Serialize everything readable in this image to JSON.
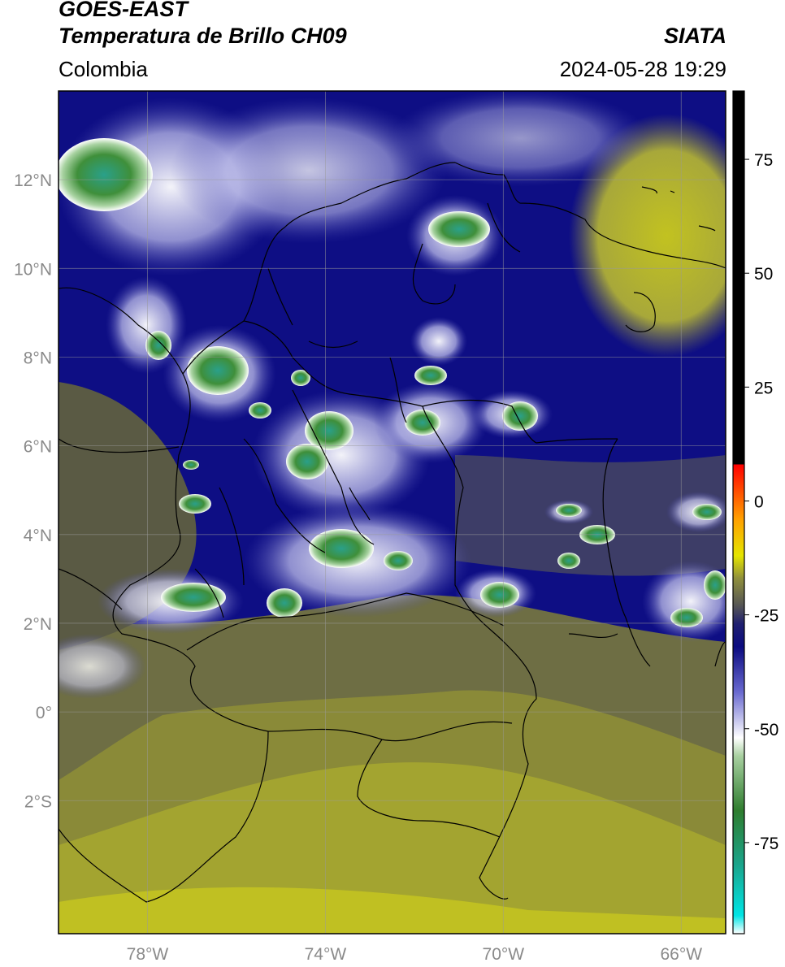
{
  "header": {
    "satellite": "GOES-EAST",
    "product": "Temperatura de Brillo CH09",
    "region": "Colombia",
    "organization": "SIATA",
    "datetime": "2024-05-28 19:29"
  },
  "map": {
    "lon_range": [
      -80,
      -65
    ],
    "lat_range": [
      -5,
      14
    ],
    "lon_ticks": [
      {
        "value": -78,
        "label": "78°W"
      },
      {
        "value": -74,
        "label": "74°W"
      },
      {
        "value": -70,
        "label": "70°W"
      },
      {
        "value": -66,
        "label": "66°W"
      }
    ],
    "lat_ticks": [
      {
        "value": 12,
        "label": "12°N"
      },
      {
        "value": 10,
        "label": "10°N"
      },
      {
        "value": 8,
        "label": "8°N"
      },
      {
        "value": 6,
        "label": "6°N"
      },
      {
        "value": 4,
        "label": "4°N"
      },
      {
        "value": 2,
        "label": "2°N"
      },
      {
        "value": 0,
        "label": "0°"
      },
      {
        "value": -2,
        "label": "2°S"
      }
    ],
    "grid": true
  },
  "colorbar": {
    "range": [
      -95,
      90
    ],
    "ticks": [
      {
        "value": 75,
        "label": "75"
      },
      {
        "value": 50,
        "label": "50"
      },
      {
        "value": 25,
        "label": "25"
      },
      {
        "value": 0,
        "label": "0"
      },
      {
        "value": -25,
        "label": "-25"
      },
      {
        "value": -50,
        "label": "-50"
      },
      {
        "value": -75,
        "label": "-75"
      }
    ],
    "stops": [
      {
        "value": -95,
        "color": "#ffffff"
      },
      {
        "value": -91,
        "color": "#00e5e5"
      },
      {
        "value": -80,
        "color": "#1aa58c"
      },
      {
        "value": -68,
        "color": "#2f7d2f"
      },
      {
        "value": -56,
        "color": "#a8d0a0"
      },
      {
        "value": -52,
        "color": "#ffffff"
      },
      {
        "value": -42,
        "color": "#6a6ad0"
      },
      {
        "value": -32,
        "color": "#0b0b80"
      },
      {
        "value": -27,
        "color": "#202070"
      },
      {
        "value": -23,
        "color": "#555555"
      },
      {
        "value": -17,
        "color": "#8f8f3c"
      },
      {
        "value": -12,
        "color": "#e5e500"
      },
      {
        "value": -4,
        "color": "#ffa000"
      },
      {
        "value": 8,
        "color": "#ff0000"
      },
      {
        "value": 8.01,
        "color": "#000000"
      },
      {
        "value": 90,
        "color": "#000000"
      }
    ]
  },
  "colors": {
    "cold_top": "#2f9e7a",
    "deep_convection": "#3f8a3a",
    "cirrus": "#f2f2ff",
    "mid_cloud": "#0b0b80",
    "clear_warm": "#a3a430",
    "clear_mid": "#5c5c4a",
    "border": "#000000"
  }
}
